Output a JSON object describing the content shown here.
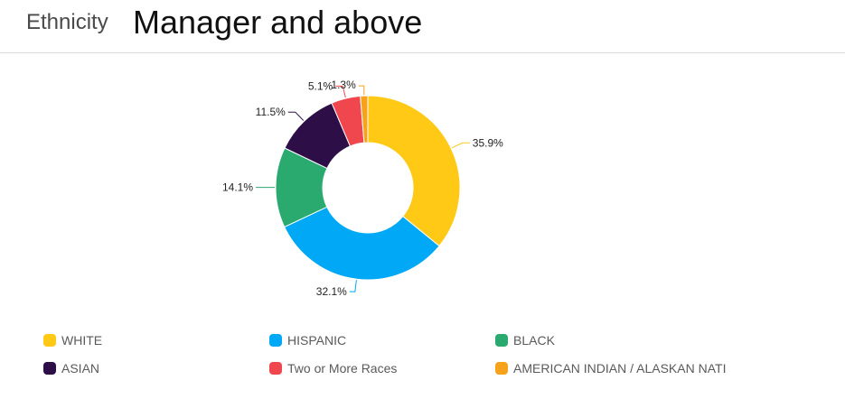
{
  "header": {
    "section_label": "Ethnicity",
    "title": "Manager and above"
  },
  "chart_data": {
    "type": "pie",
    "donut": true,
    "categories": [
      "WHITE",
      "HISPANIC",
      "BLACK",
      "ASIAN",
      "Two or More Races",
      "AMERICAN INDIAN / ALASKAN NATI"
    ],
    "values": [
      35.9,
      32.1,
      14.1,
      11.5,
      5.1,
      1.3
    ],
    "value_labels": [
      "35.9%",
      "32.1%",
      "14.1%",
      "11.5%",
      "5.1%",
      "1.3%"
    ],
    "colors": [
      "#FFC916",
      "#00A8F5",
      "#2AAA6E",
      "#2E0E47",
      "#F0474E",
      "#F7A21B"
    ],
    "legend_placement": "bottom"
  }
}
